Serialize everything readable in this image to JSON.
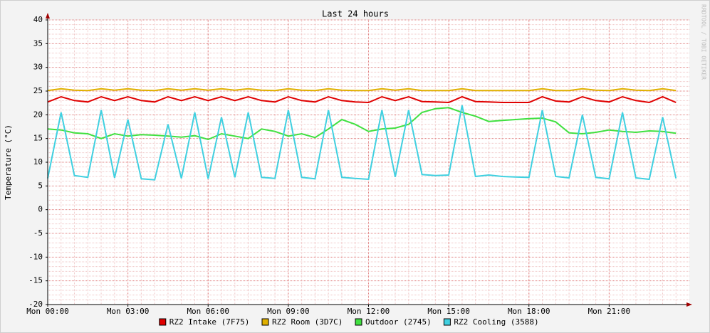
{
  "chart_data": {
    "type": "line",
    "title": "Last 24 hours",
    "y_label": "Temperature (°C)",
    "credit": "RRDTOOL / TOBI OETIKER",
    "x": [
      0,
      0.5,
      1,
      1.5,
      2,
      2.5,
      3,
      3.5,
      4,
      4.5,
      5,
      5.5,
      6,
      6.5,
      7,
      7.5,
      8,
      8.5,
      9,
      9.5,
      10,
      10.5,
      11,
      11.5,
      12,
      12.5,
      13,
      13.5,
      14,
      14.5,
      15,
      15.5,
      16,
      16.5,
      17,
      17.5,
      18,
      18.5,
      19,
      19.5,
      20,
      20.5,
      21,
      21.5,
      22,
      22.5,
      23,
      23.5
    ],
    "xlim": [
      0,
      24
    ],
    "xticks": [
      {
        "value": 0,
        "label": "Mon 00:00"
      },
      {
        "value": 3,
        "label": "Mon 03:00"
      },
      {
        "value": 6,
        "label": "Mon 06:00"
      },
      {
        "value": 9,
        "label": "Mon 09:00"
      },
      {
        "value": 12,
        "label": "Mon 12:00"
      },
      {
        "value": 15,
        "label": "Mon 15:00"
      },
      {
        "value": 18,
        "label": "Mon 18:00"
      },
      {
        "value": 21,
        "label": "Mon 21:00"
      }
    ],
    "ylim": [
      -20,
      40
    ],
    "yticks": [
      -20,
      -15,
      -10,
      -5,
      0,
      5,
      10,
      15,
      20,
      25,
      30,
      35,
      40
    ],
    "grid": true,
    "series": [
      {
        "name": "RZ2 Intake (7F75)",
        "color": "#e00000",
        "values": [
          22.7,
          23.8,
          23,
          22.7,
          23.8,
          23,
          23.8,
          23,
          22.7,
          23.8,
          23,
          23.8,
          23,
          23.8,
          23,
          23.8,
          23,
          22.7,
          23.8,
          23,
          22.7,
          23.8,
          23,
          22.7,
          22.6,
          23.8,
          23,
          23.8,
          22.8,
          22.7,
          22.6,
          23.8,
          22.8,
          22.7,
          22.6,
          22.6,
          22.6,
          23.8,
          22.9,
          22.7,
          23.8,
          23,
          22.7,
          23.8,
          23,
          22.6,
          23.8,
          22.6
        ]
      },
      {
        "name": "RZ2 Room (3D7C)",
        "color": "#e0b000",
        "values": [
          25.1,
          25.5,
          25.2,
          25.1,
          25.5,
          25.2,
          25.5,
          25.2,
          25.1,
          25.5,
          25.2,
          25.5,
          25.2,
          25.5,
          25.2,
          25.5,
          25.2,
          25.1,
          25.5,
          25.2,
          25.1,
          25.5,
          25.2,
          25.1,
          25.1,
          25.5,
          25.2,
          25.5,
          25.1,
          25.1,
          25.1,
          25.5,
          25.1,
          25.1,
          25.1,
          25.1,
          25.1,
          25.5,
          25.1,
          25.1,
          25.5,
          25.2,
          25.1,
          25.5,
          25.2,
          25.1,
          25.5,
          25.1
        ]
      },
      {
        "name": "Outdoor (2745)",
        "color": "#40e040",
        "values": [
          17,
          16.8,
          16.2,
          16,
          15,
          16,
          15.5,
          15.8,
          15.7,
          15.5,
          15.3,
          15.6,
          14.8,
          16,
          15.5,
          15,
          17,
          16.5,
          15.5,
          16,
          15.2,
          17,
          19,
          18,
          16.5,
          17,
          17.2,
          18,
          20.5,
          21.3,
          21.5,
          20.5,
          19.7,
          18.6,
          18.8,
          19,
          19.2,
          19.3,
          18.5,
          16.2,
          16,
          16.3,
          16.8,
          16.5,
          16.3,
          16.6,
          16.5,
          16.1
        ]
      },
      {
        "name": "RZ2 Cooling (3588)",
        "color": "#40d0e0",
        "values": [
          6.6,
          20.5,
          7.2,
          6.8,
          21,
          6.7,
          19,
          6.5,
          6.3,
          18,
          6.6,
          20.5,
          6.5,
          19.5,
          6.8,
          20.5,
          6.8,
          6.6,
          21,
          6.8,
          6.5,
          21,
          6.8,
          6.6,
          6.4,
          21,
          6.9,
          21,
          7.4,
          7.2,
          7.3,
          22,
          7,
          7.3,
          7,
          6.9,
          6.8,
          21,
          7,
          6.7,
          20,
          6.8,
          6.5,
          20.5,
          6.7,
          6.4,
          19.5,
          6.6
        ]
      }
    ]
  }
}
